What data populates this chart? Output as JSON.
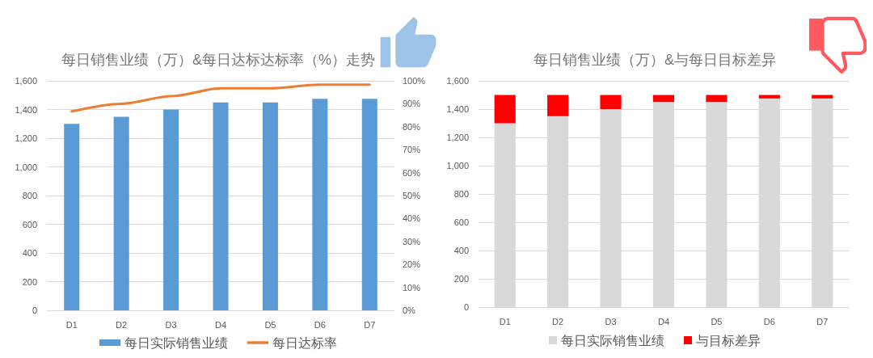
{
  "chart_data": [
    {
      "type": "bar",
      "title": "每日销售业绩（万）&每日达标达标率（%）走势",
      "categories": [
        "D1",
        "D2",
        "D3",
        "D4",
        "D5",
        "D6",
        "D7"
      ],
      "series": [
        {
          "name": "每日实际销售业绩",
          "color": "#5b9bd5",
          "values": [
            1300,
            1350,
            1400,
            1450,
            1450,
            1475,
            1475
          ]
        },
        {
          "name": "每日达标率",
          "type": "line",
          "axis": "y2",
          "color": "#ed7d31",
          "values": [
            86.7,
            90,
            93.3,
            96.7,
            96.7,
            98.3,
            98.3
          ]
        }
      ],
      "ylim": [
        0,
        1600
      ],
      "yticks": [
        0,
        200,
        400,
        600,
        800,
        {
          "value": 1000,
          "label": "1,000"
        },
        {
          "value": 1200,
          "label": "1,200"
        },
        {
          "value": 1400,
          "label": "1,400"
        },
        {
          "value": 1600,
          "label": "1,600"
        }
      ],
      "y2lim": [
        0,
        100
      ],
      "y2ticks": [
        {
          "value": 0,
          "label": "0%"
        },
        {
          "value": 10,
          "label": "10%"
        },
        {
          "value": 20,
          "label": "20%"
        },
        {
          "value": 30,
          "label": "30%"
        },
        {
          "value": 40,
          "label": "40%"
        },
        {
          "value": 50,
          "label": "50%"
        },
        {
          "value": 60,
          "label": "60%"
        },
        {
          "value": 70,
          "label": "70%"
        },
        {
          "value": 80,
          "label": "80%"
        },
        {
          "value": 90,
          "label": "90%"
        },
        {
          "value": 100,
          "label": "100%"
        }
      ],
      "grid": "y",
      "legend": "bottom",
      "marker": "none",
      "line_style": "solid"
    },
    {
      "type": "bar",
      "stacked": true,
      "title": "每日销售业绩（万）&与每日目标差异",
      "categories": [
        "D1",
        "D2",
        "D3",
        "D4",
        "D5",
        "D6",
        "D7"
      ],
      "series": [
        {
          "name": "每日实际销售业绩",
          "color": "#d9d9d9",
          "values": [
            1300,
            1350,
            1400,
            1450,
            1450,
            1475,
            1475
          ]
        },
        {
          "name": "与目标差异",
          "color": "#ff0000",
          "values": [
            200,
            150,
            100,
            50,
            50,
            25,
            25
          ]
        }
      ],
      "ylim": [
        0,
        1600
      ],
      "yticks": [
        0,
        200,
        400,
        600,
        800,
        {
          "value": 1000,
          "label": "1,000"
        },
        {
          "value": 1200,
          "label": "1,200"
        },
        {
          "value": 1400,
          "label": "1,400"
        },
        {
          "value": 1600,
          "label": "1,600"
        }
      ],
      "grid": "y",
      "legend": "bottom"
    }
  ]
}
